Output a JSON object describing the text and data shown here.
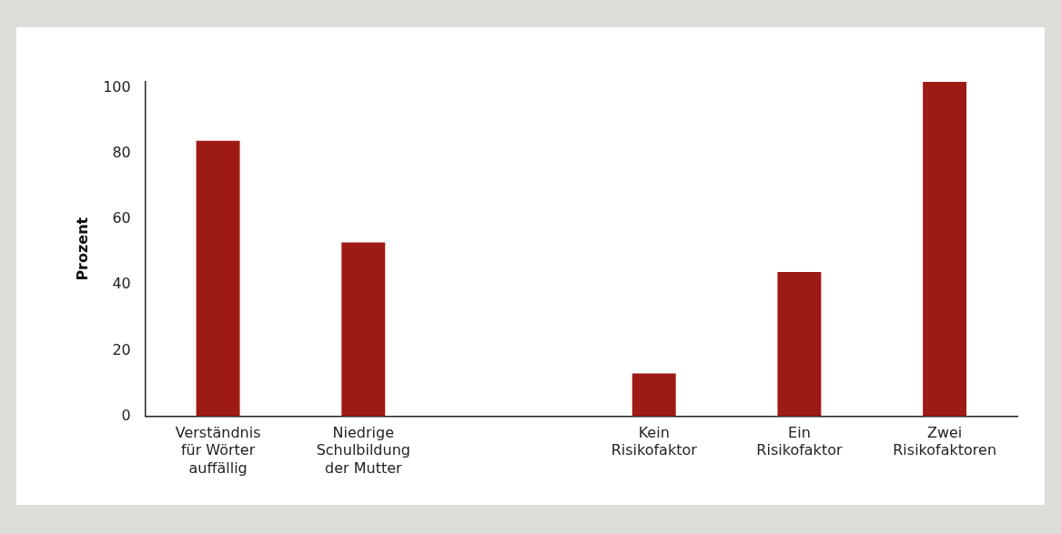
{
  "chart_data": {
    "type": "bar",
    "ylabel": "Prozent",
    "categories": [
      "Verständnis für Wörter auffällig",
      "Niedrige Schulbildung der Mutter",
      null,
      "Kein Risikofaktor",
      "Ein Risikofaktor",
      "Zwei Risikofaktoren"
    ],
    "values": [
      84,
      53,
      null,
      13,
      44,
      102
    ],
    "color": "#9e1a14",
    "ylim": [
      0,
      102
    ],
    "yticks": [
      0,
      20,
      40,
      60,
      80,
      100
    ],
    "grid": false,
    "legend": false
  }
}
